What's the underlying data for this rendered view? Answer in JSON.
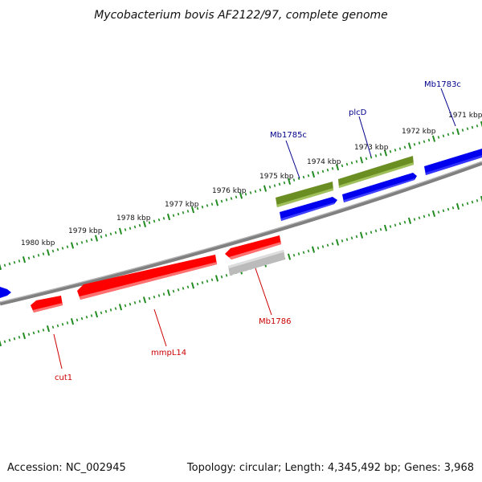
{
  "title": "Mycobacterium bovis AF2122/97, complete genome",
  "footer": {
    "accession": "Accession: NC_002945",
    "summary": "Topology: circular; Length: 4,345,492 bp; Genes: 3,968"
  },
  "colors": {
    "backbone": "#808080",
    "tick": "#228B22",
    "forward_gene": "#0000EE",
    "forward_gene_alt": "#6B8E23",
    "reverse_gene": "#FF0000",
    "reverse_gene_alt": "#BBBBBB",
    "forward_label": "#00008B",
    "reverse_label": "#CC0000"
  },
  "kbp_ticks": [
    "1971 kbp",
    "1972 kbp",
    "1973 kbp",
    "1974 kbp",
    "1975 kbp",
    "1976 kbp",
    "1977 kbp",
    "1978 kbp",
    "1979 kbp",
    "1980 kbp"
  ],
  "gene_labels": {
    "forward": [
      "Mb1783c",
      "plcD",
      "Mb1785c"
    ],
    "reverse": [
      "Mb1786",
      "mmpL14",
      "cut1"
    ]
  }
}
